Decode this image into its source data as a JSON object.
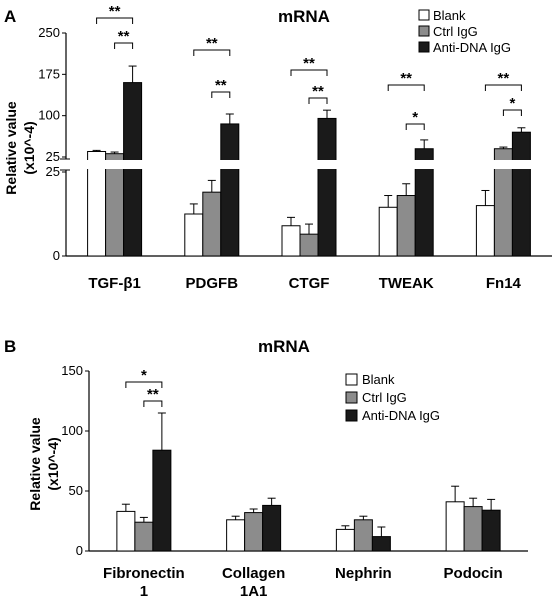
{
  "chart_data": [
    {
      "panel": "A",
      "type": "bar",
      "title": "mRNA",
      "ylabel_line1": "Relative value",
      "ylabel_line2": "(x10^-4)",
      "broken_axis": true,
      "ylim_lower": [
        0,
        25
      ],
      "ylim_upper": [
        25,
        250
      ],
      "yticks_lower": [
        "0",
        "25"
      ],
      "yticks_upper": [
        "25",
        "100",
        "175",
        "250"
      ],
      "categories": [
        "TGF-β1",
        "PDGFB",
        "CTGF",
        "TWEAK",
        "Fn14"
      ],
      "series": [
        {
          "name": "Blank",
          "color": "#ffffff",
          "values": [
            35,
            12.5,
            9,
            14.5,
            15
          ],
          "errors": [
            2,
            3,
            2.5,
            3.5,
            4.5
          ]
        },
        {
          "name": "Ctrl IgG",
          "color": "#8c8c8c",
          "values": [
            31,
            19,
            6.5,
            18,
            40
          ],
          "errors": [
            3,
            3.5,
            3,
            3.5,
            3
          ]
        },
        {
          "name": "Anti-DNA IgG",
          "color": "#1a1a1a",
          "values": [
            160,
            85,
            95,
            40,
            70
          ],
          "errors": [
            30,
            18,
            15,
            16,
            8
          ]
        }
      ],
      "significance": [
        {
          "category": 0,
          "pair": [
            "Blank",
            "Anti-DNA IgG"
          ],
          "label": "**"
        },
        {
          "category": 0,
          "pair": [
            "Ctrl IgG",
            "Anti-DNA IgG"
          ],
          "label": "**"
        },
        {
          "category": 1,
          "pair": [
            "Blank",
            "Anti-DNA IgG"
          ],
          "label": "**"
        },
        {
          "category": 1,
          "pair": [
            "Ctrl IgG",
            "Anti-DNA IgG"
          ],
          "label": "**"
        },
        {
          "category": 2,
          "pair": [
            "Blank",
            "Anti-DNA IgG"
          ],
          "label": "**"
        },
        {
          "category": 2,
          "pair": [
            "Ctrl IgG",
            "Anti-DNA IgG"
          ],
          "label": "**"
        },
        {
          "category": 3,
          "pair": [
            "Blank",
            "Anti-DNA IgG"
          ],
          "label": "**"
        },
        {
          "category": 3,
          "pair": [
            "Ctrl IgG",
            "Anti-DNA IgG"
          ],
          "label": "*"
        },
        {
          "category": 4,
          "pair": [
            "Blank",
            "Anti-DNA IgG"
          ],
          "label": "**"
        },
        {
          "category": 4,
          "pair": [
            "Ctrl IgG",
            "Anti-DNA IgG"
          ],
          "label": "*"
        }
      ],
      "legend": [
        "Blank",
        "Ctrl IgG",
        "Anti-DNA IgG"
      ],
      "legend_position": "top-right"
    },
    {
      "panel": "B",
      "type": "bar",
      "title": "mRNA",
      "ylabel_line1": "Relative value",
      "ylabel_line2": "(x10^-4)",
      "ylim": [
        0,
        150
      ],
      "yticks": [
        "0",
        "50",
        "100",
        "150"
      ],
      "categories": [
        [
          "Fibronectin",
          "1"
        ],
        [
          "Collagen",
          "1A1"
        ],
        [
          "Nephrin"
        ],
        [
          "Podocin"
        ]
      ],
      "series": [
        {
          "name": "Blank",
          "color": "#ffffff",
          "values": [
            33,
            26,
            18,
            41
          ],
          "errors": [
            6,
            3,
            3,
            13
          ]
        },
        {
          "name": "Ctrl IgG",
          "color": "#8c8c8c",
          "values": [
            24,
            32,
            26,
            37
          ],
          "errors": [
            4,
            3,
            3,
            7
          ]
        },
        {
          "name": "Anti-DNA IgG",
          "color": "#1a1a1a",
          "values": [
            84,
            38,
            12,
            34
          ],
          "errors": [
            31,
            6,
            8,
            9
          ]
        }
      ],
      "significance": [
        {
          "category": 0,
          "pair": [
            "Blank",
            "Anti-DNA IgG"
          ],
          "label": "*"
        },
        {
          "category": 0,
          "pair": [
            "Ctrl IgG",
            "Anti-DNA IgG"
          ],
          "label": "**"
        }
      ],
      "legend": [
        "Blank",
        "Ctrl IgG",
        "Anti-DNA IgG"
      ],
      "legend_position": "top-right"
    }
  ]
}
